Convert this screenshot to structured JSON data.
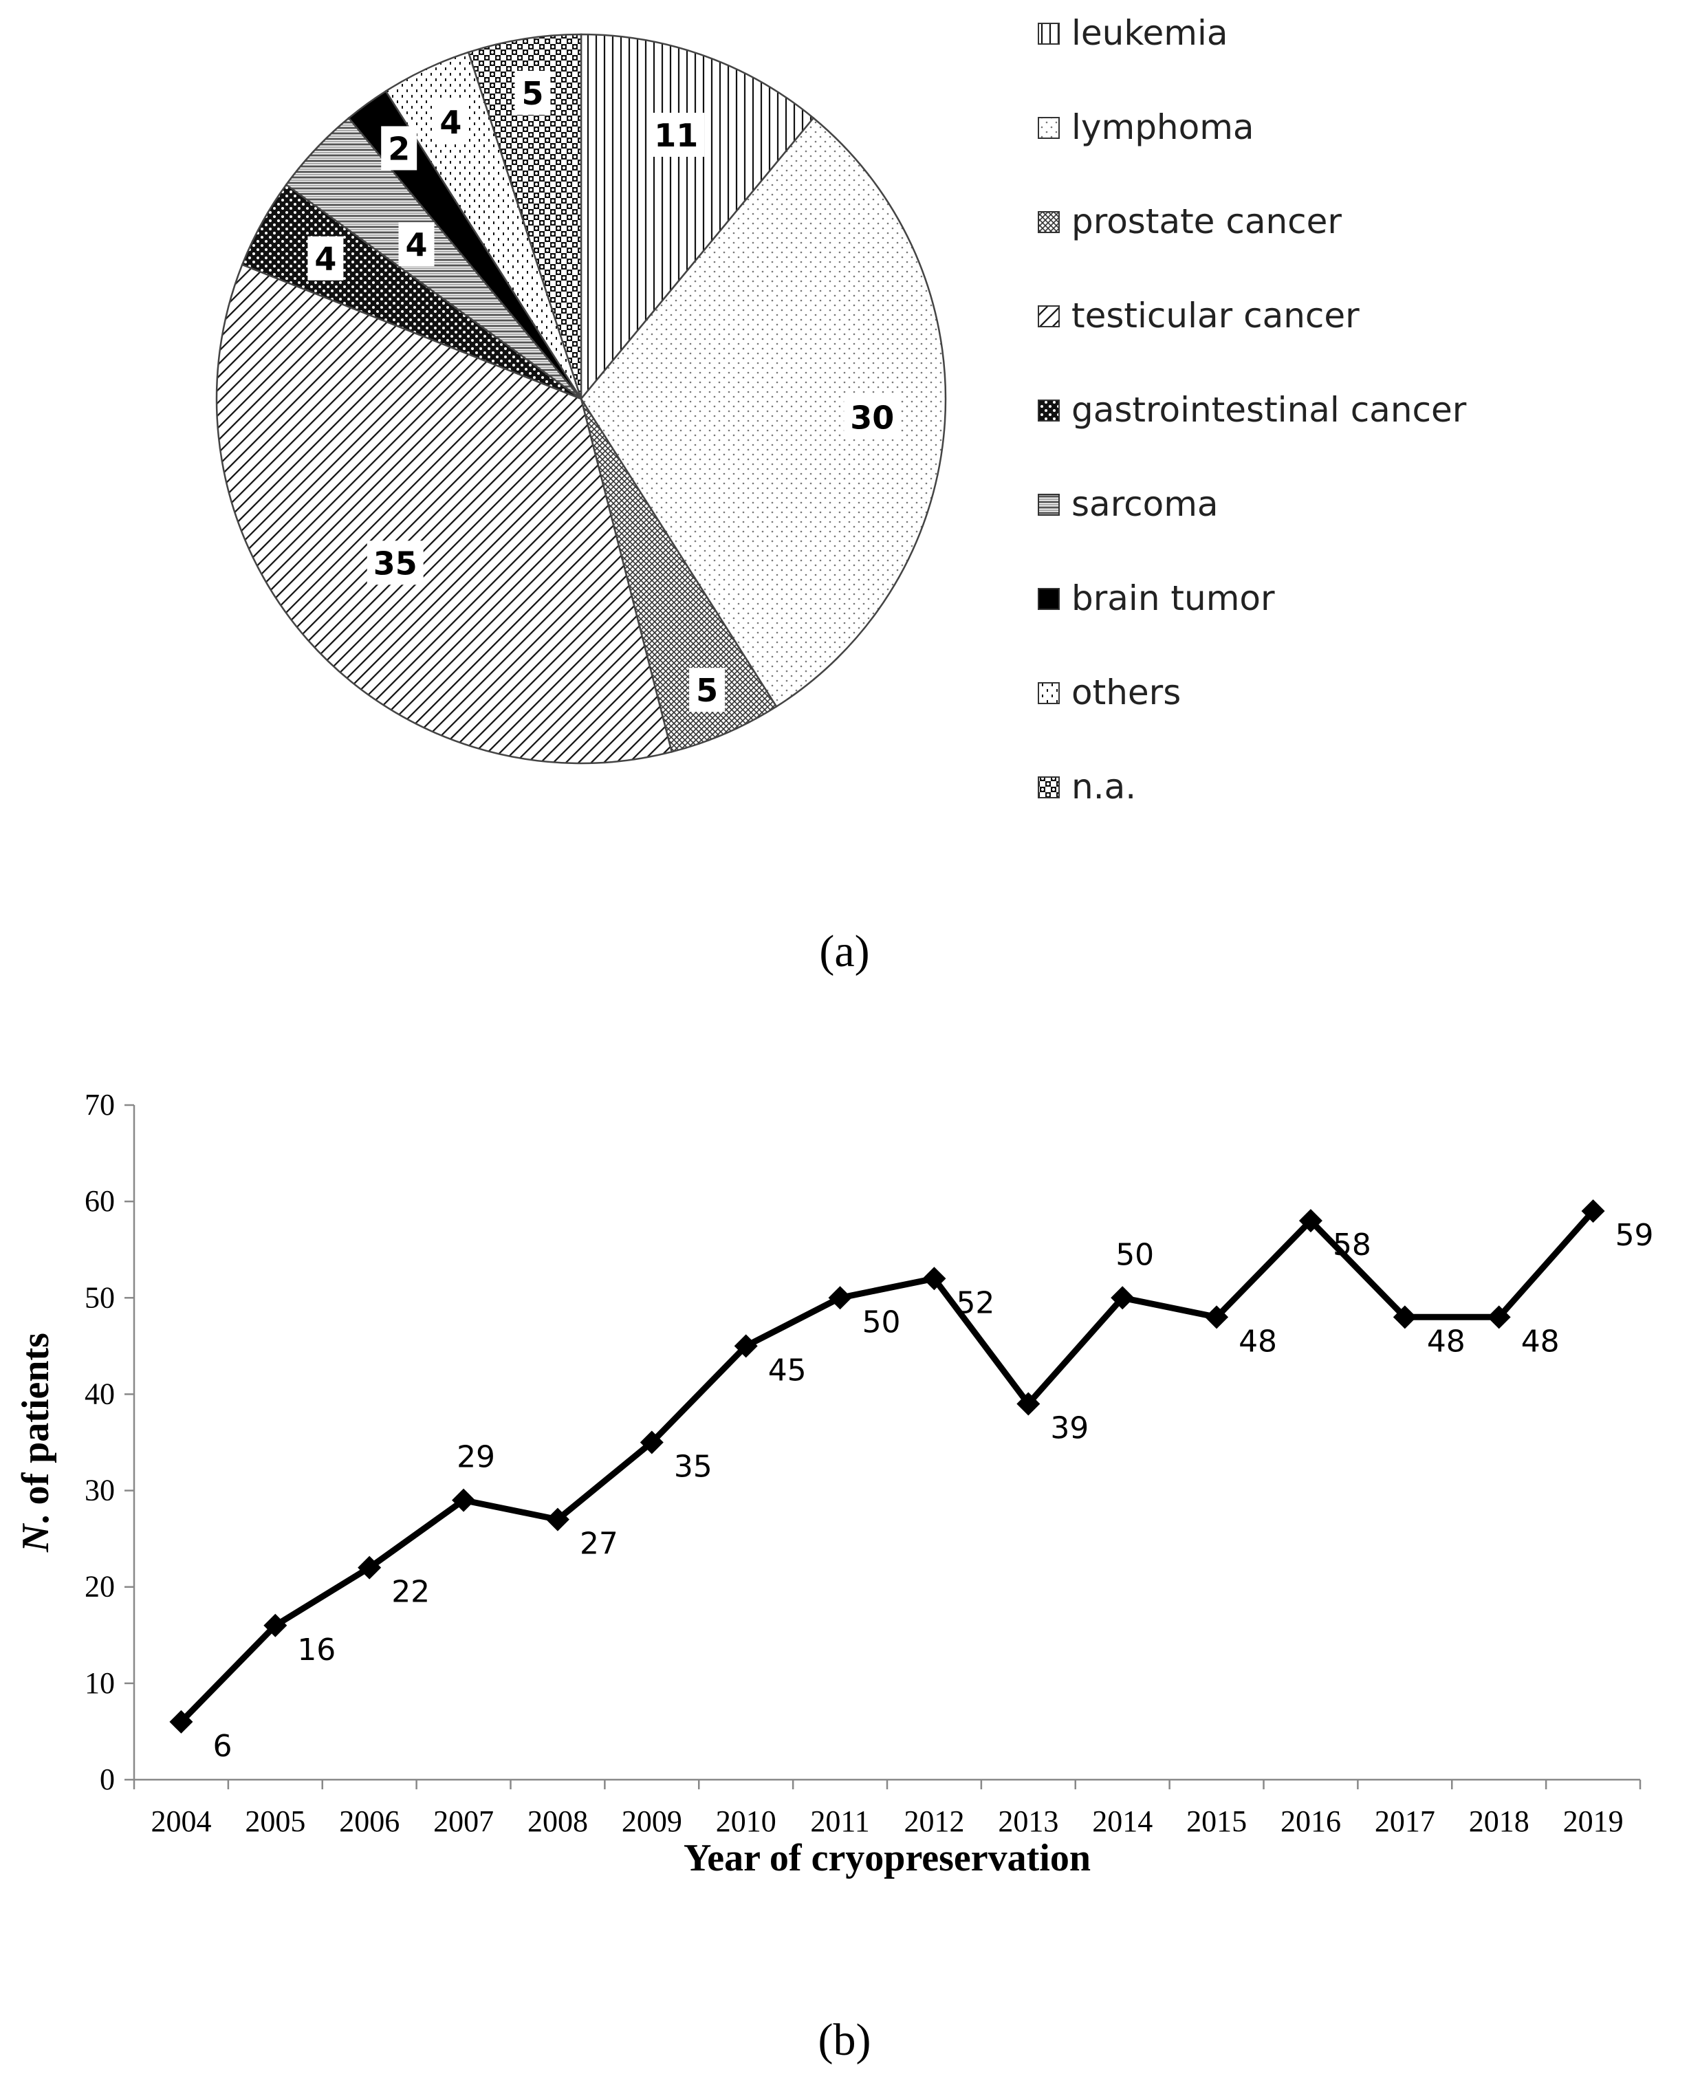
{
  "chart_data": [
    {
      "type": "pie",
      "panel_label": "(a)",
      "categories": [
        "leukemia",
        "lymphoma",
        "prostate cancer",
        "testicular cancer",
        "gastrointestinal cancer",
        "sarcoma",
        "brain tumor",
        "others",
        "n.a."
      ],
      "values": [
        11,
        30,
        5,
        35,
        4,
        4,
        2,
        4,
        5
      ],
      "data_labels": [
        "11",
        "30",
        "5",
        "35",
        "4",
        "4",
        "2",
        "4",
        "5"
      ],
      "legend_position": "right",
      "patterns": [
        "vertical-lines",
        "fine-dots",
        "crosshatch-dense",
        "diagonal-lines",
        "black-dotted",
        "horizontal-lines",
        "solid-black",
        "sparse-dots",
        "checkerboard"
      ]
    },
    {
      "type": "line",
      "panel_label": "(b)",
      "x": [
        "2004",
        "2005",
        "2006",
        "2007",
        "2008",
        "2009",
        "2010",
        "2011",
        "2012",
        "2013",
        "2014",
        "2015",
        "2016",
        "2017",
        "2018",
        "2019"
      ],
      "values": [
        6,
        16,
        22,
        29,
        27,
        35,
        45,
        50,
        52,
        39,
        50,
        48,
        58,
        48,
        48,
        59
      ],
      "data_labels": [
        "6",
        "16",
        "22",
        "29",
        "27",
        "35",
        "45",
        "50",
        "52",
        "39",
        "50",
        "48",
        "58",
        "48",
        "48",
        "59"
      ],
      "label_side": [
        "below",
        "below",
        "below",
        "above",
        "below",
        "below",
        "below",
        "below",
        "below",
        "below",
        "above",
        "below",
        "below",
        "below",
        "below",
        "below"
      ],
      "xlabel": "Year of cryopreservation",
      "ylabel_italic": "N",
      "ylabel_rest": ". of patients",
      "ylim": [
        0,
        70
      ],
      "yticks": [
        "0",
        "10",
        "20",
        "30",
        "40",
        "50",
        "60",
        "70"
      ],
      "marker": "diamond",
      "grid": false
    }
  ]
}
